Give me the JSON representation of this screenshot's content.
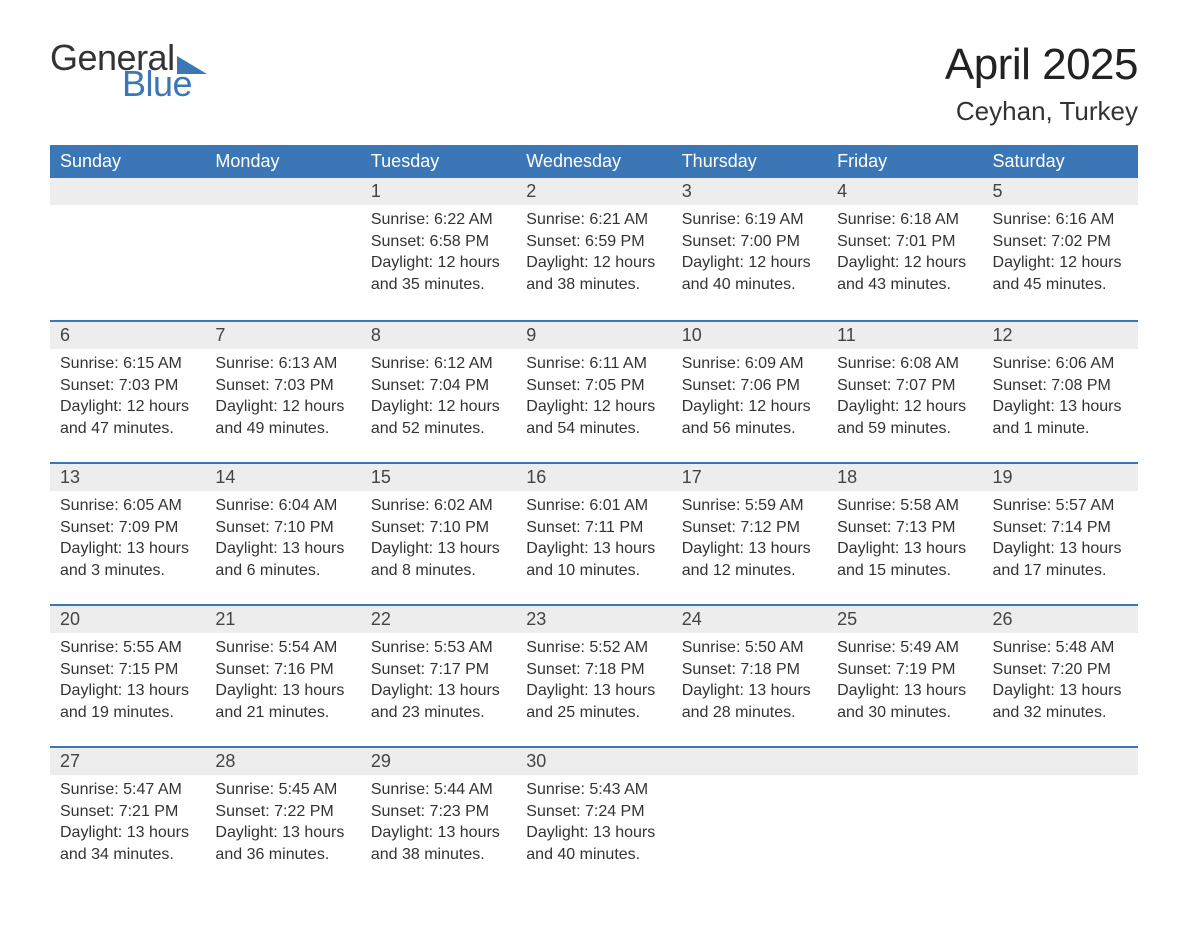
{
  "logo": {
    "text1": "General",
    "text2": "Blue",
    "accent_color": "#3b77b7"
  },
  "title": {
    "month": "April 2025",
    "location": "Ceyhan, Turkey"
  },
  "colors": {
    "header_bg": "#3b77b7",
    "header_text": "#ffffff",
    "daynum_bg": "#ededed",
    "row_divider": "#3b77b7",
    "body_text": "#333333",
    "page_bg": "#ffffff"
  },
  "calendar": {
    "type": "table",
    "columns": [
      "Sunday",
      "Monday",
      "Tuesday",
      "Wednesday",
      "Thursday",
      "Friday",
      "Saturday"
    ],
    "weeks": [
      [
        null,
        null,
        {
          "n": "1",
          "sunrise": "6:22 AM",
          "sunset": "6:58 PM",
          "daylight": "12 hours and 35 minutes."
        },
        {
          "n": "2",
          "sunrise": "6:21 AM",
          "sunset": "6:59 PM",
          "daylight": "12 hours and 38 minutes."
        },
        {
          "n": "3",
          "sunrise": "6:19 AM",
          "sunset": "7:00 PM",
          "daylight": "12 hours and 40 minutes."
        },
        {
          "n": "4",
          "sunrise": "6:18 AM",
          "sunset": "7:01 PM",
          "daylight": "12 hours and 43 minutes."
        },
        {
          "n": "5",
          "sunrise": "6:16 AM",
          "sunset": "7:02 PM",
          "daylight": "12 hours and 45 minutes."
        }
      ],
      [
        {
          "n": "6",
          "sunrise": "6:15 AM",
          "sunset": "7:03 PM",
          "daylight": "12 hours and 47 minutes."
        },
        {
          "n": "7",
          "sunrise": "6:13 AM",
          "sunset": "7:03 PM",
          "daylight": "12 hours and 49 minutes."
        },
        {
          "n": "8",
          "sunrise": "6:12 AM",
          "sunset": "7:04 PM",
          "daylight": "12 hours and 52 minutes."
        },
        {
          "n": "9",
          "sunrise": "6:11 AM",
          "sunset": "7:05 PM",
          "daylight": "12 hours and 54 minutes."
        },
        {
          "n": "10",
          "sunrise": "6:09 AM",
          "sunset": "7:06 PM",
          "daylight": "12 hours and 56 minutes."
        },
        {
          "n": "11",
          "sunrise": "6:08 AM",
          "sunset": "7:07 PM",
          "daylight": "12 hours and 59 minutes."
        },
        {
          "n": "12",
          "sunrise": "6:06 AM",
          "sunset": "7:08 PM",
          "daylight": "13 hours and 1 minute."
        }
      ],
      [
        {
          "n": "13",
          "sunrise": "6:05 AM",
          "sunset": "7:09 PM",
          "daylight": "13 hours and 3 minutes."
        },
        {
          "n": "14",
          "sunrise": "6:04 AM",
          "sunset": "7:10 PM",
          "daylight": "13 hours and 6 minutes."
        },
        {
          "n": "15",
          "sunrise": "6:02 AM",
          "sunset": "7:10 PM",
          "daylight": "13 hours and 8 minutes."
        },
        {
          "n": "16",
          "sunrise": "6:01 AM",
          "sunset": "7:11 PM",
          "daylight": "13 hours and 10 minutes."
        },
        {
          "n": "17",
          "sunrise": "5:59 AM",
          "sunset": "7:12 PM",
          "daylight": "13 hours and 12 minutes."
        },
        {
          "n": "18",
          "sunrise": "5:58 AM",
          "sunset": "7:13 PM",
          "daylight": "13 hours and 15 minutes."
        },
        {
          "n": "19",
          "sunrise": "5:57 AM",
          "sunset": "7:14 PM",
          "daylight": "13 hours and 17 minutes."
        }
      ],
      [
        {
          "n": "20",
          "sunrise": "5:55 AM",
          "sunset": "7:15 PM",
          "daylight": "13 hours and 19 minutes."
        },
        {
          "n": "21",
          "sunrise": "5:54 AM",
          "sunset": "7:16 PM",
          "daylight": "13 hours and 21 minutes."
        },
        {
          "n": "22",
          "sunrise": "5:53 AM",
          "sunset": "7:17 PM",
          "daylight": "13 hours and 23 minutes."
        },
        {
          "n": "23",
          "sunrise": "5:52 AM",
          "sunset": "7:18 PM",
          "daylight": "13 hours and 25 minutes."
        },
        {
          "n": "24",
          "sunrise": "5:50 AM",
          "sunset": "7:18 PM",
          "daylight": "13 hours and 28 minutes."
        },
        {
          "n": "25",
          "sunrise": "5:49 AM",
          "sunset": "7:19 PM",
          "daylight": "13 hours and 30 minutes."
        },
        {
          "n": "26",
          "sunrise": "5:48 AM",
          "sunset": "7:20 PM",
          "daylight": "13 hours and 32 minutes."
        }
      ],
      [
        {
          "n": "27",
          "sunrise": "5:47 AM",
          "sunset": "7:21 PM",
          "daylight": "13 hours and 34 minutes."
        },
        {
          "n": "28",
          "sunrise": "5:45 AM",
          "sunset": "7:22 PM",
          "daylight": "13 hours and 36 minutes."
        },
        {
          "n": "29",
          "sunrise": "5:44 AM",
          "sunset": "7:23 PM",
          "daylight": "13 hours and 38 minutes."
        },
        {
          "n": "30",
          "sunrise": "5:43 AM",
          "sunset": "7:24 PM",
          "daylight": "13 hours and 40 minutes."
        },
        null,
        null,
        null
      ]
    ],
    "labels": {
      "sunrise": "Sunrise: ",
      "sunset": "Sunset: ",
      "daylight": "Daylight: "
    }
  }
}
